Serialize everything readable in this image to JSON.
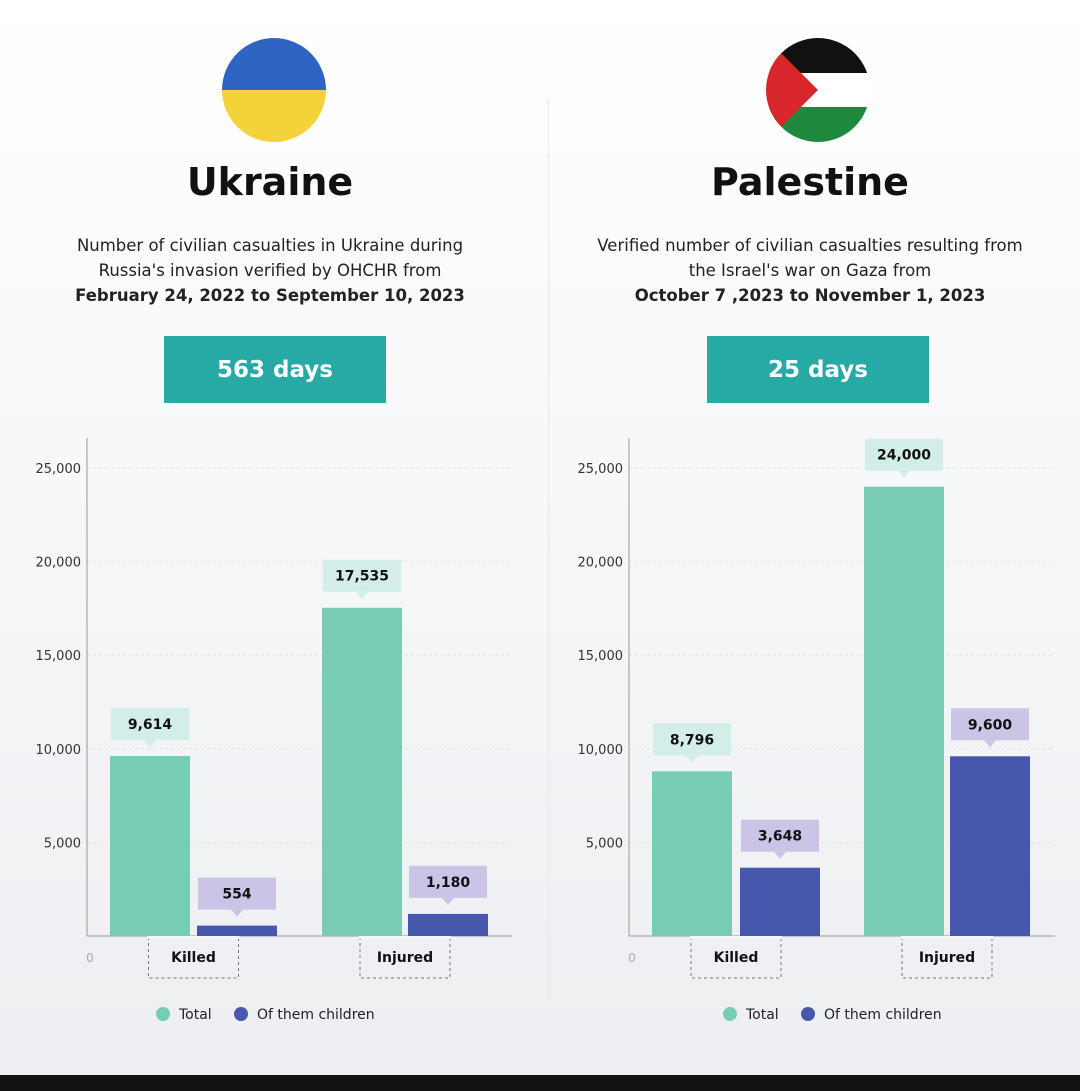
{
  "colors": {
    "total": "#76cdb4",
    "children": "#4657ad",
    "total_label_bg": "#d3eee8",
    "children_label_bg": "#cbc4e6",
    "days_bg": "#27aaa6"
  },
  "legend": {
    "total": "Total",
    "children": "Of them children"
  },
  "panels": [
    {
      "country": "Ukraine",
      "flag_icon": "ukraine-flag-icon",
      "desc_line1": "Number of civilian casualties in Ukraine during",
      "desc_line2": "Russia's invasion verified by OHCHR from",
      "desc_line3": "February 24, 2022 to September 10, 2023",
      "days": "563 days"
    },
    {
      "country": "Palestine",
      "flag_icon": "palestine-flag-icon",
      "desc_line1": "Verified number of civilian casualties resulting from",
      "desc_line2": "the Israel's war on Gaza from",
      "desc_line3": "October 7 ,2023 to November 1, 2023",
      "days": "25 days"
    }
  ],
  "chart_data": [
    {
      "type": "bar",
      "categories": [
        "Killed",
        "Injured"
      ],
      "series": [
        {
          "name": "Total",
          "values": [
            9614,
            17535
          ],
          "labels": [
            "9,614",
            "17,535"
          ]
        },
        {
          "name": "Of them children",
          "values": [
            554,
            1180
          ],
          "labels": [
            "554",
            "1,180"
          ]
        }
      ],
      "yticks": [
        "0",
        "5,000",
        "10,000",
        "15,000",
        "20,000",
        "25,000"
      ],
      "ylim": [
        0,
        25000
      ],
      "legend": "bottom"
    },
    {
      "type": "bar",
      "categories": [
        "Killed",
        "Injured"
      ],
      "series": [
        {
          "name": "Total",
          "values": [
            8796,
            24000
          ],
          "labels": [
            "8,796",
            "24,000"
          ]
        },
        {
          "name": "Of them children",
          "values": [
            3648,
            9600
          ],
          "labels": [
            "3,648",
            "9,600"
          ]
        }
      ],
      "yticks": [
        "0",
        "5,000",
        "10,000",
        "15,000",
        "20,000",
        "25,000"
      ],
      "ylim": [
        0,
        25000
      ],
      "legend": "bottom"
    }
  ]
}
